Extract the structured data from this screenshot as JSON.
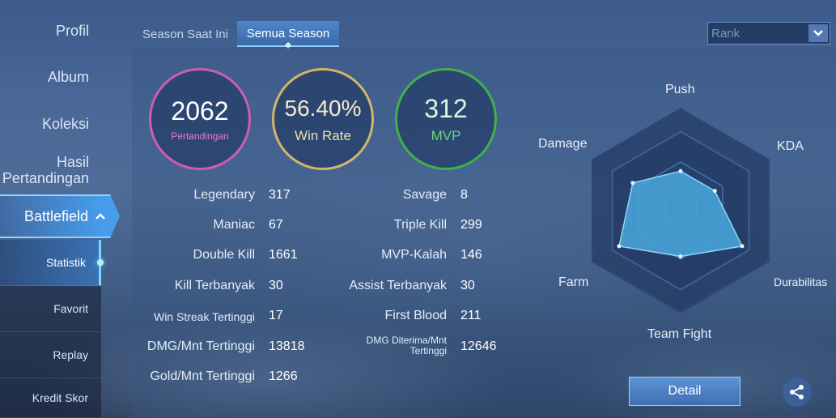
{
  "sidebar": {
    "items": [
      {
        "label": "Profil"
      },
      {
        "label": "Album"
      },
      {
        "label": "Koleksi"
      },
      {
        "label": "Hasil Pertandingan"
      }
    ],
    "active_section": {
      "label": "Battlefield",
      "icon": "chevron-up-icon"
    },
    "sub_items": [
      {
        "label": "Statistik",
        "active": true
      },
      {
        "label": "Favorit"
      },
      {
        "label": "Replay"
      },
      {
        "label": "Kredit Skor"
      }
    ]
  },
  "tabs": [
    {
      "label": "Season Saat Ini",
      "active": false
    },
    {
      "label": "Semua Season",
      "active": true
    }
  ],
  "mode_select": {
    "value": "Rank",
    "icon": "chevron-down-icon"
  },
  "summary": {
    "matches": {
      "value": "2062",
      "caption": "Pertandingan",
      "color": "#d05ab8"
    },
    "win_rate": {
      "value": "56.40%",
      "caption": "Win Rate",
      "color": "#d2b56a"
    },
    "mvp": {
      "value": "312",
      "caption": "MVP",
      "color": "#3fb04a"
    }
  },
  "stats_left": [
    {
      "label": "Legendary",
      "value": "317"
    },
    {
      "label": "Maniac",
      "value": "67"
    },
    {
      "label": "Double Kill",
      "value": "1661"
    },
    {
      "label": "Kill Terbanyak",
      "value": "30"
    },
    {
      "label": "Win Streak Tertinggi",
      "value": "17"
    },
    {
      "label": "DMG/Mnt Tertinggi",
      "value": "13818"
    },
    {
      "label": "Gold/Mnt Tertinggi",
      "value": "1266"
    }
  ],
  "stats_right": [
    {
      "label": "Savage",
      "value": "8"
    },
    {
      "label": "Triple Kill",
      "value": "299"
    },
    {
      "label": "MVP-Kalah",
      "value": "146"
    },
    {
      "label": "Assist Terbanyak",
      "value": "30"
    },
    {
      "label": "First Blood",
      "value": "211"
    },
    {
      "label": "DMG Diterima/Mnt Tertinggi",
      "value": "12646"
    }
  ],
  "radar": {
    "axes": [
      "Push",
      "KDA",
      "Durabilitas",
      "Team Fight",
      "Farm",
      "Damage"
    ],
    "values": [
      0.5,
      0.5,
      0.9,
      0.58,
      0.9,
      0.7
    ],
    "fill_color": "#4aa8dc"
  },
  "buttons": {
    "detail": "Detail",
    "share_icon": "share-icon"
  }
}
